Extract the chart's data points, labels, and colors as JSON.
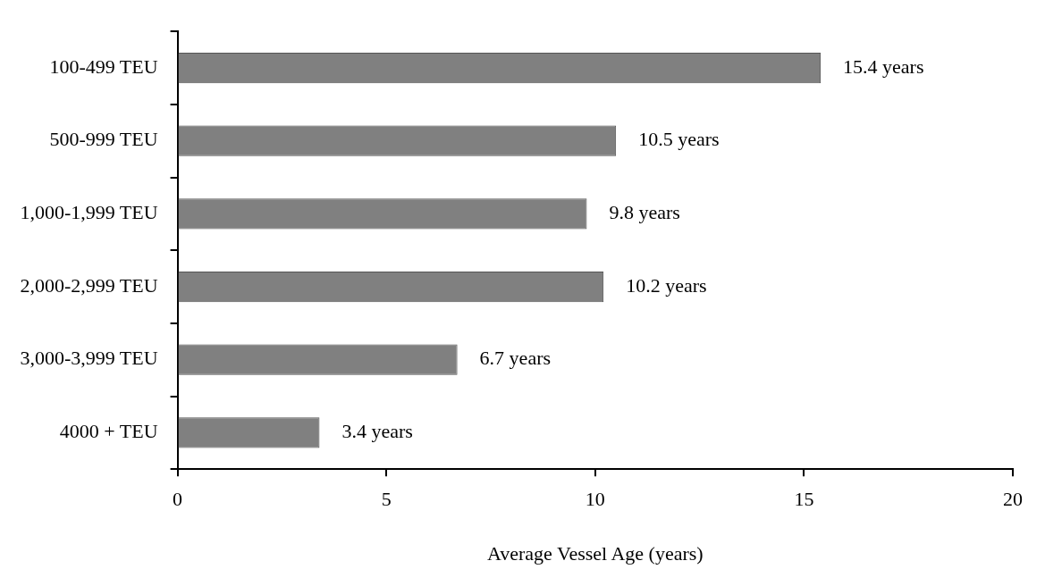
{
  "chart_data": {
    "type": "bar",
    "orientation": "horizontal",
    "xlabel": "Average Vessel Age (years)",
    "categories": [
      "100-499 TEU",
      "500-999 TEU",
      "1,000-1,999 TEU",
      "2,000-2,999 TEU",
      "3,000-3,999 TEU",
      "4000 + TEU"
    ],
    "values": [
      15.4,
      10.5,
      9.8,
      10.2,
      6.7,
      3.4
    ],
    "value_labels": [
      "15.4 years",
      "10.5 years",
      "9.8 years",
      "10.2 years",
      "6.7 years",
      "3.4 years"
    ],
    "color": "#808080",
    "xlim": [
      0,
      20
    ],
    "xticks": [
      0,
      5,
      10,
      15,
      20
    ],
    "grid": false,
    "legend": false
  }
}
